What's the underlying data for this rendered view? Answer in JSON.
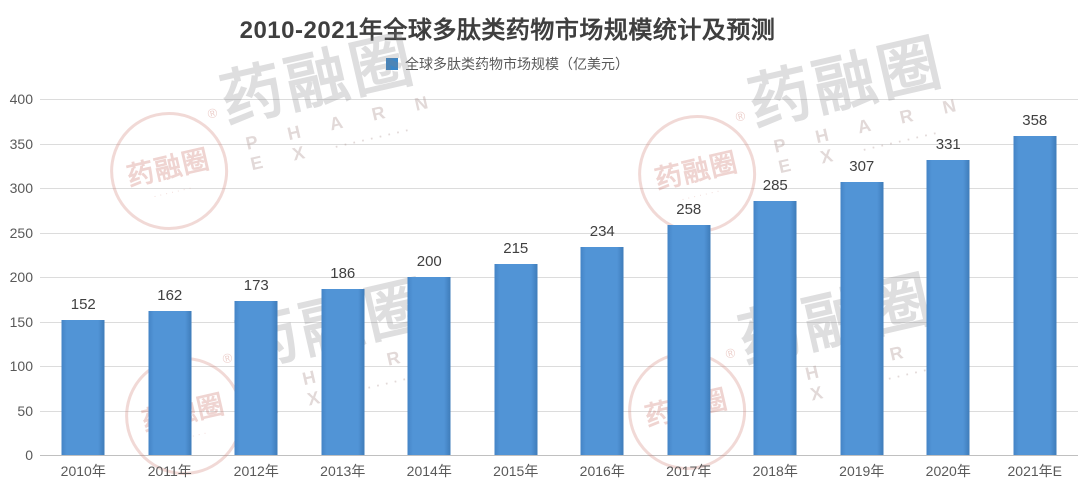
{
  "title": "2010-2021年全球多肽类药物市场规模统计及预测",
  "legend": {
    "label": "全球多肽类药物市场规模（亿美元）",
    "swatch_color": "#3a86c8"
  },
  "watermark": {
    "stamp_text": "药融圈",
    "stamp_dots": "·······",
    "reg_mark": "®",
    "brand_text": "药融圈",
    "latin_text": "PHARNEX",
    "trail_dots": "·········"
  },
  "chart_data": {
    "type": "bar",
    "title": "2010-2021年全球多肽类药物市场规模统计及预测",
    "series_name": "全球多肽类药物市场规模（亿美元）",
    "categories": [
      "2010年",
      "2011年",
      "2012年",
      "2013年",
      "2014年",
      "2015年",
      "2016年",
      "2017年",
      "2018年",
      "2019年",
      "2020年",
      "2021年E"
    ],
    "values": [
      152,
      162,
      173,
      186,
      200,
      215,
      234,
      258,
      285,
      307,
      331,
      358
    ],
    "ylim": [
      0,
      400
    ],
    "ytick_interval": 50,
    "yticks": [
      0,
      50,
      100,
      150,
      200,
      250,
      300,
      350,
      400
    ],
    "grid": true,
    "legend_position": "top",
    "bar_color": "#4e8fd2",
    "value_label_color": "#404040",
    "axis_label_color": "#595959"
  }
}
